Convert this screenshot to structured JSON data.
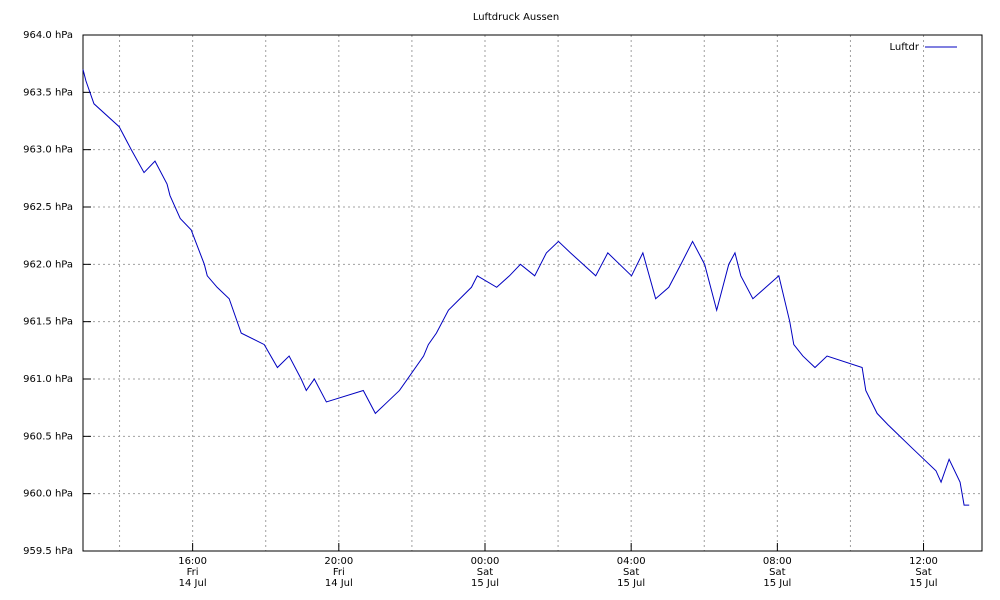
{
  "chart_data": {
    "type": "line",
    "title": "Luftdruck Aussen",
    "x": [
      13.0,
      13.08,
      13.3,
      13.99,
      14.32,
      14.67,
      14.97,
      15.3,
      15.38,
      15.66,
      15.96,
      16.32,
      16.4,
      16.67,
      17.0,
      17.33,
      17.96,
      18.32,
      18.64,
      18.97,
      19.11,
      19.33,
      19.66,
      20.67,
      21.0,
      21.33,
      21.66,
      22.32,
      22.45,
      22.67,
      23.0,
      23.63,
      23.79,
      24.32,
      24.67,
      24.97,
      25.36,
      25.68,
      26.01,
      26.34,
      27.03,
      27.36,
      28.01,
      28.32,
      28.67,
      29.03,
      29.36,
      29.68,
      30.01,
      30.34,
      30.67,
      30.84,
      31.0,
      31.33,
      32.04,
      32.34,
      32.45,
      32.7,
      33.03,
      33.36,
      34.32,
      34.42,
      34.73,
      35.03,
      35.68,
      36.34,
      36.48,
      36.7,
      37.0,
      37.11,
      37.25
    ],
    "series": [
      {
        "name": "Luftdr",
        "color": "#0000c0",
        "values": [
          963.7,
          963.6,
          963.4,
          963.2,
          963.0,
          962.8,
          962.9,
          962.7,
          962.6,
          962.4,
          962.3,
          962.0,
          961.9,
          961.8,
          961.7,
          961.4,
          961.3,
          961.1,
          961.2,
          961.0,
          960.9,
          961.0,
          960.8,
          960.9,
          960.7,
          960.8,
          960.9,
          961.2,
          961.3,
          961.4,
          961.6,
          961.8,
          961.9,
          961.8,
          961.9,
          962.0,
          961.9,
          962.1,
          962.2,
          962.1,
          961.9,
          962.1,
          961.9,
          962.1,
          961.7,
          961.8,
          962.0,
          962.2,
          962.0,
          961.6,
          962.0,
          962.1,
          961.9,
          961.7,
          961.9,
          961.5,
          961.3,
          961.2,
          961.1,
          961.2,
          961.1,
          960.9,
          960.7,
          960.6,
          960.4,
          960.2,
          960.1,
          960.3,
          960.1,
          959.9,
          959.9
        ]
      }
    ],
    "xlim": [
      13.0,
      37.6
    ],
    "xticks": [
      {
        "value": 16,
        "label": "16:00\nFri\n14 Jul"
      },
      {
        "value": 20,
        "label": "20:00\nFri\n14 Jul"
      },
      {
        "value": 24,
        "label": "00:00\nSat\n15 Jul"
      },
      {
        "value": 28,
        "label": "04:00\nSat\n15 Jul"
      },
      {
        "value": 32,
        "label": "08:00\nSat\n15 Jul"
      },
      {
        "value": 36,
        "label": "12:00\nSat\n15 Jul"
      }
    ],
    "ylim": [
      959.5,
      964.0
    ],
    "yticks": [
      {
        "value": 959.5,
        "label": "959.5 hPa"
      },
      {
        "value": 960.0,
        "label": "960.0 hPa"
      },
      {
        "value": 960.5,
        "label": "960.5 hPa"
      },
      {
        "value": 961.0,
        "label": "961.0 hPa"
      },
      {
        "value": 961.5,
        "label": "961.5 hPa"
      },
      {
        "value": 962.0,
        "label": "962.0 hPa"
      },
      {
        "value": 962.5,
        "label": "962.5 hPa"
      },
      {
        "value": 963.0,
        "label": "963.0 hPa"
      },
      {
        "value": 963.5,
        "label": "963.5 hPa"
      },
      {
        "value": 964.0,
        "label": "964.0 hPa"
      }
    ],
    "grid": true,
    "legend": "top-right"
  }
}
